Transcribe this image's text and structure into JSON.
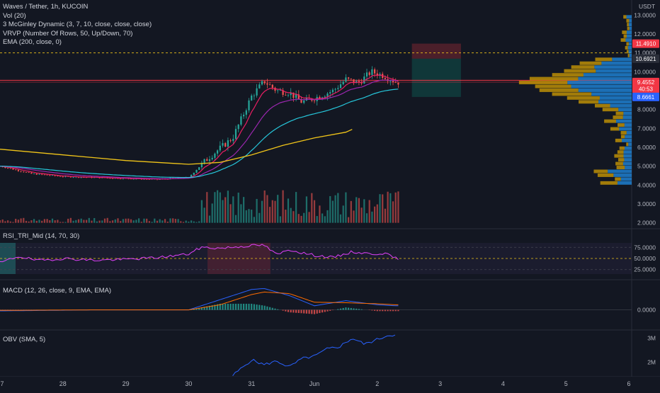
{
  "header": {
    "symbol_line": "Waves / Tether, 1h, KUCOIN",
    "indicators": [
      "Vol (20)",
      "3 McGinley Dynamic (3, 7, 10, close, close, close)",
      "VRVP (Number Of Rows, 50, Up/Down, 70)",
      "EMA (200, close, 0)"
    ]
  },
  "price_axis": {
    "currency": "USDT",
    "ticks": [
      "13.0000",
      "12.0000",
      "11.0000",
      "10.0000",
      "9.0000",
      "8.0000",
      "7.0000",
      "6.0000",
      "5.0000",
      "4.0000",
      "3.0000",
      "2.0000"
    ],
    "badges": [
      {
        "label": "11.4910",
        "color": "#f23645",
        "price": 11.491
      },
      {
        "label": "10.6921",
        "color": "#2a2e39",
        "price": 10.6921
      },
      {
        "label": "9.4552",
        "color": "#f23645",
        "price": 9.4552
      },
      {
        "label": "40:53",
        "color": "#f23645",
        "price": 9.1
      },
      {
        "label": "8.6661",
        "color": "#2962ff",
        "price": 8.6661
      }
    ]
  },
  "rsi": {
    "label": "RSI_TRI_Mid (14, 70, 30)",
    "ticks": [
      "75.0000",
      "50.0000",
      "25.0000"
    ]
  },
  "macd": {
    "label": "MACD (12, 26, close, 9, EMA, EMA)",
    "ticks": [
      "0.0000"
    ]
  },
  "obv": {
    "label": "OBV (SMA, 5)",
    "ticks": [
      "3M",
      "2M"
    ]
  },
  "time_axis": {
    "labels": [
      "7",
      "28",
      "29",
      "30",
      "31",
      "Jun",
      "2",
      "3",
      "4",
      "5",
      "6"
    ]
  },
  "colors": {
    "up": "#26a69a",
    "down": "#ef5350",
    "ema200": "#f0c419",
    "mcginley": "#9c27b0",
    "ema_fast": "#e91e63",
    "ema_teal": "#26c6da",
    "macd_line": "#2962ff",
    "signal_line": "#ff6d00",
    "rsi_line": "#e040fb",
    "obv_line": "#2962ff",
    "vrvp_up": "#2196f3",
    "vrvp_down": "#e0a800"
  },
  "chart_data": [
    {
      "type": "line",
      "title": "Waves / Tether, 1h, KUCOIN",
      "ylabel": "USDT",
      "ylim": [
        1.8,
        13.8
      ],
      "x_labels": [
        "7",
        "28",
        "29",
        "30",
        "31",
        "Jun",
        "2"
      ],
      "series": [
        {
          "name": "EMA (200, close, 0)",
          "points": [
            [
              27.0,
              5.9
            ],
            [
              28.0,
              5.6
            ],
            [
              29.0,
              5.3
            ],
            [
              30.0,
              5.1
            ],
            [
              30.5,
              5.2
            ],
            [
              31.0,
              5.6
            ],
            [
              31.5,
              6.1
            ],
            [
              32.0,
              6.5
            ],
            [
              32.5,
              6.8
            ],
            [
              32.6,
              6.95
            ]
          ]
        }
      ],
      "close_points": [
        [
          27.0,
          5.0
        ],
        [
          27.5,
          4.6
        ],
        [
          28.0,
          4.45
        ],
        [
          28.5,
          4.4
        ],
        [
          29.0,
          4.35
        ],
        [
          29.5,
          4.3
        ],
        [
          30.0,
          4.4
        ],
        [
          30.3,
          5.4
        ],
        [
          30.7,
          6.5
        ],
        [
          31.0,
          8.7
        ],
        [
          31.2,
          9.5
        ],
        [
          31.4,
          9.0
        ],
        [
          31.6,
          8.9
        ],
        [
          31.8,
          8.4
        ],
        [
          32.0,
          8.6
        ],
        [
          32.3,
          9.0
        ],
        [
          32.5,
          9.6
        ],
        [
          32.7,
          9.4
        ],
        [
          32.9,
          10.0
        ],
        [
          33.1,
          9.8
        ],
        [
          33.3,
          9.45
        ]
      ],
      "trade_box": {
        "entry": 10.6921,
        "target": 8.6661,
        "stop": 11.491
      },
      "volume_ylim": [
        0,
        3
      ],
      "annotations": [
        "11.4910",
        "10.6921",
        "9.4552",
        "8.6661"
      ]
    },
    {
      "type": "line",
      "title": "RSI_TRI_Mid (14, 70, 30)",
      "ylim": [
        15,
        85
      ],
      "levels": [
        75,
        50,
        25
      ],
      "series": [
        {
          "name": "RSI",
          "points": [
            [
              27.0,
              40
            ],
            [
              27.3,
              55
            ],
            [
              27.6,
              45
            ],
            [
              28.0,
              50
            ],
            [
              28.5,
              46
            ],
            [
              29.0,
              48
            ],
            [
              29.5,
              52
            ],
            [
              30.0,
              60
            ],
            [
              30.2,
              75
            ],
            [
              30.5,
              73
            ],
            [
              31.0,
              79
            ],
            [
              31.2,
              80
            ],
            [
              31.4,
              58
            ],
            [
              31.6,
              70
            ],
            [
              31.8,
              63
            ],
            [
              32.0,
              57
            ],
            [
              32.3,
              52
            ],
            [
              32.6,
              65
            ],
            [
              32.9,
              60
            ],
            [
              33.1,
              62
            ],
            [
              33.3,
              50
            ]
          ]
        }
      ]
    },
    {
      "type": "line",
      "title": "MACD (12, 26, close, 9, EMA, EMA)",
      "ylim": [
        -0.45,
        0.55
      ],
      "series": [
        {
          "name": "MACD",
          "points": [
            [
              27.0,
              -0.02
            ],
            [
              28.5,
              0.0
            ],
            [
              30.0,
              0.0
            ],
            [
              30.5,
              0.2
            ],
            [
              31.0,
              0.4
            ],
            [
              31.2,
              0.42
            ],
            [
              31.6,
              0.28
            ],
            [
              32.0,
              0.08
            ],
            [
              32.5,
              0.18
            ],
            [
              33.0,
              0.1
            ],
            [
              33.3,
              0.08
            ]
          ]
        },
        {
          "name": "Signal",
          "points": [
            [
              27.0,
              -0.01
            ],
            [
              28.5,
              0.0
            ],
            [
              30.0,
              0.0
            ],
            [
              30.5,
              0.1
            ],
            [
              31.0,
              0.3
            ],
            [
              31.2,
              0.35
            ],
            [
              31.6,
              0.32
            ],
            [
              32.0,
              0.15
            ],
            [
              32.5,
              0.14
            ],
            [
              33.0,
              0.12
            ],
            [
              33.3,
              0.1
            ]
          ]
        }
      ]
    },
    {
      "type": "line",
      "title": "OBV (SMA, 5)",
      "ylim": [
        1.4,
        3.4
      ],
      "series": [
        {
          "name": "OBV",
          "points": [
            [
              30.7,
              1.45
            ],
            [
              31.0,
              2.1
            ],
            [
              31.2,
              1.9
            ],
            [
              31.4,
              2.05
            ],
            [
              31.6,
              1.8
            ],
            [
              31.8,
              2.15
            ],
            [
              32.0,
              2.25
            ],
            [
              32.2,
              2.55
            ],
            [
              32.4,
              2.65
            ],
            [
              32.6,
              3.0
            ],
            [
              32.8,
              2.75
            ],
            [
              33.0,
              2.95
            ],
            [
              33.2,
              3.15
            ],
            [
              33.3,
              3.1
            ]
          ]
        }
      ]
    }
  ]
}
